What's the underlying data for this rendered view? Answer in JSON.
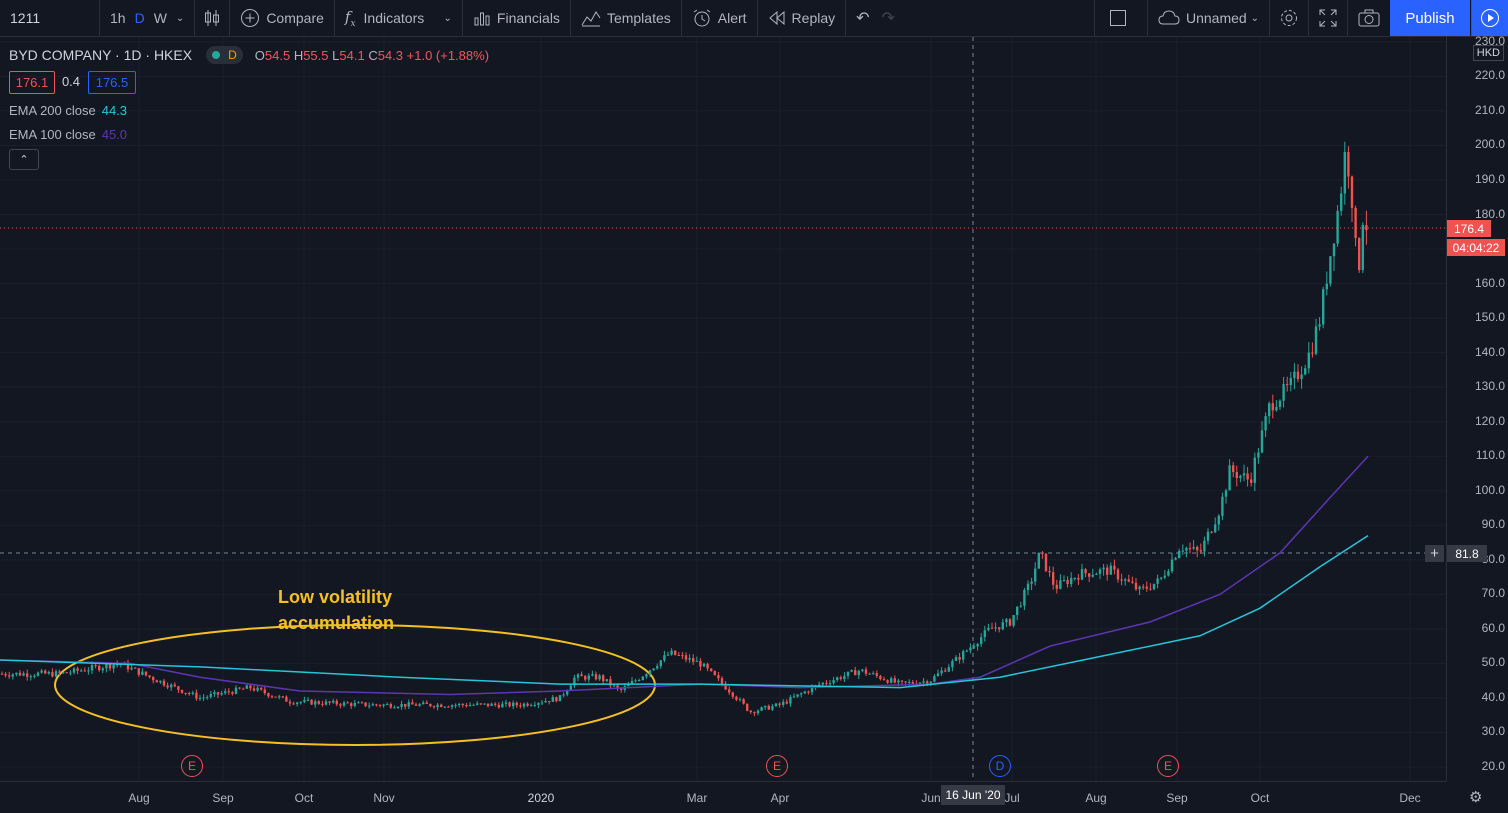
{
  "toolbar": {
    "symbol": "1211",
    "intervals": [
      "1h",
      "D",
      "W"
    ],
    "compare": "Compare",
    "indicators": "Indicators",
    "financials": "Financials",
    "templates": "Templates",
    "alert": "Alert",
    "replay": "Replay",
    "layout_name": "Unnamed",
    "publish": "Publish"
  },
  "legend": {
    "title": "BYD COMPANY · 1D · HKEX",
    "status": "D",
    "o_label": "O",
    "o": "54.5",
    "h_label": "H",
    "h": "55.5",
    "l_label": "L",
    "l": "54.1",
    "c_label": "C",
    "c": "54.3",
    "change": "+1.0 (+1.88%)",
    "bid": "176.1",
    "spread": "0.4",
    "ask": "176.5",
    "ema200_label": "EMA 200 close",
    "ema200_value": "44.3",
    "ema100_label": "EMA 100 close",
    "ema100_value": "45.0"
  },
  "annotation": {
    "line1": "Low volatility",
    "line2": "accumulation"
  },
  "price_axis": {
    "currency": "HKD",
    "ticks": [
      "20.0",
      "30.0",
      "40.0",
      "50.0",
      "60.0",
      "70.0",
      "80.0",
      "90.0",
      "100.0",
      "110.0",
      "120.0",
      "130.0",
      "140.0",
      "150.0",
      "160.0",
      "170.0",
      "180.0",
      "190.0",
      "200.0",
      "210.0",
      "220.0",
      "230.0"
    ],
    "last_price": "176.4",
    "countdown": "04:04:22",
    "crosshair_price": "81.8"
  },
  "time_axis": {
    "labels": [
      "Aug",
      "Sep",
      "Oct",
      "Nov",
      "2020",
      "Mar",
      "Apr",
      "Jun",
      "Jul",
      "Aug",
      "Sep",
      "Oct",
      "Dec"
    ],
    "crosshair_date": "16 Jun '20"
  },
  "events": [
    {
      "label": "E",
      "kind": "earnings"
    },
    {
      "label": "E",
      "kind": "earnings"
    },
    {
      "label": "D",
      "kind": "dividend"
    },
    {
      "label": "E",
      "kind": "earnings"
    }
  ],
  "colors": {
    "up": "#26a69a",
    "down": "#ef5350",
    "ema200": "#26c6da",
    "ema100": "#5e35b1",
    "accent": "#2962ff",
    "annotation": "#f6c022"
  }
}
